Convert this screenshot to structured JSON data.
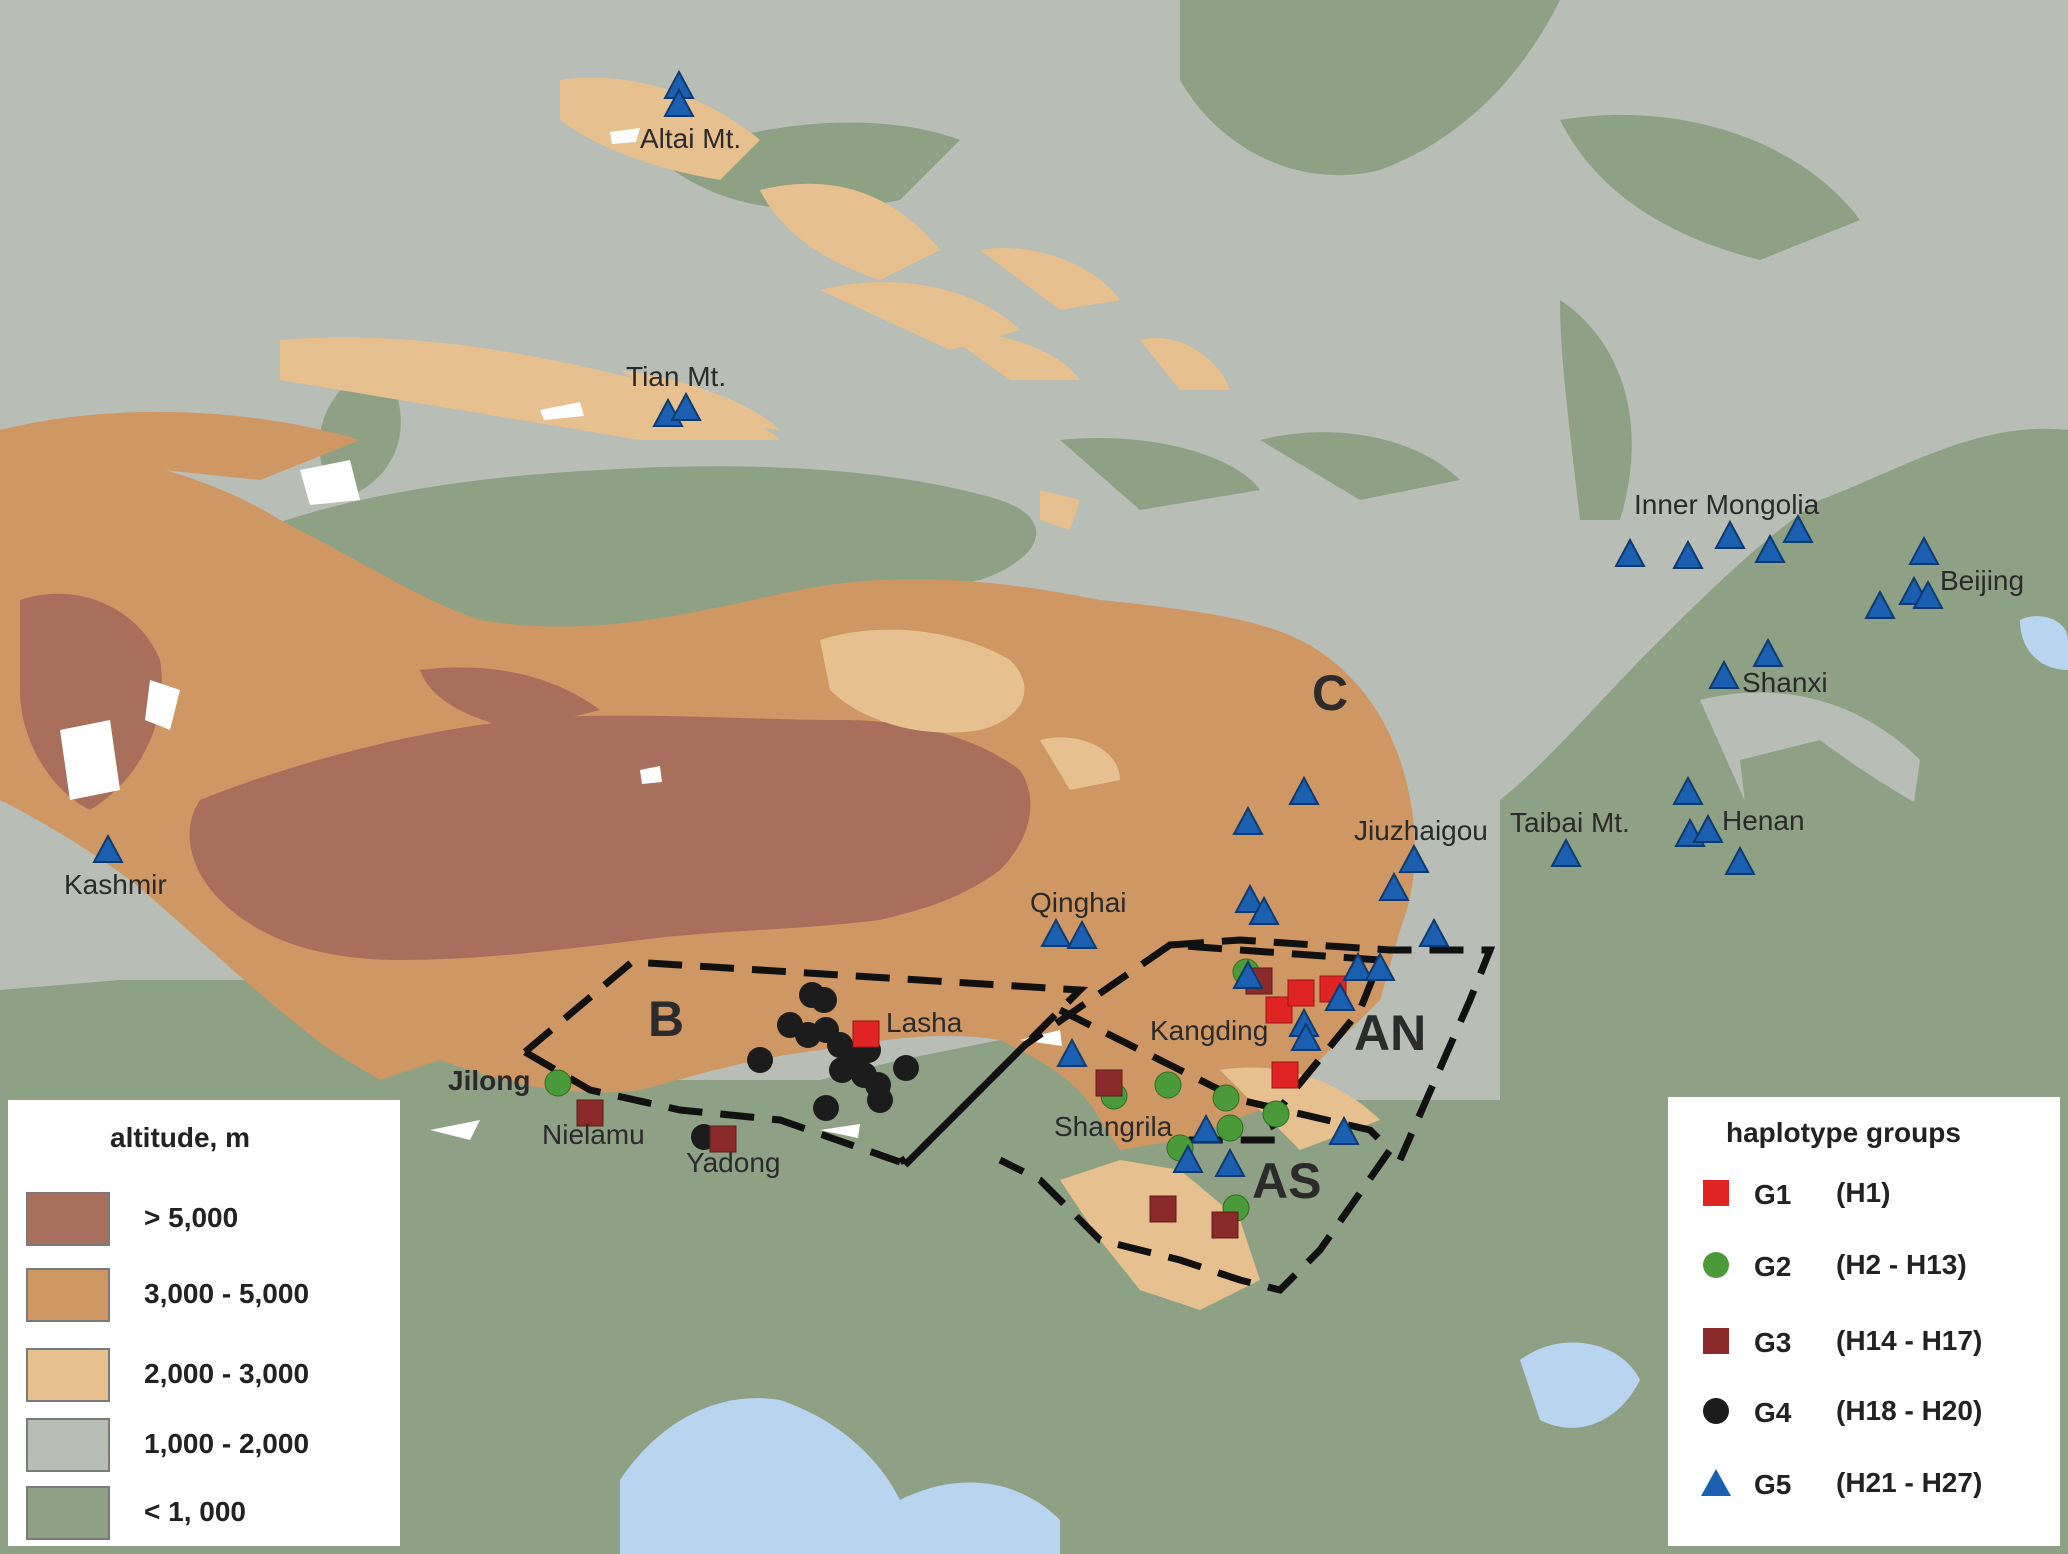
{
  "colors": {
    "lowland": "#8fa184",
    "mid": "#b8bdb6",
    "high2000": "#e6c18f",
    "high3000": "#cf9764",
    "high5000": "#a8705c",
    "water": "#b9d4ee",
    "g1": "#e02424",
    "g2": "#4a9a3a",
    "g3": "#8b2a2a",
    "g4": "#1c1c1c",
    "g5": "#1a5fb0"
  },
  "places": {
    "altai": "Altai Mt.",
    "tian": "Tian Mt.",
    "inner_mongolia": "Inner Mongolia",
    "beijing": "Beijing",
    "shanxi": "Shanxi",
    "henan": "Henan",
    "taibai": "Taibai Mt.",
    "jiuzhaigou": "Jiuzhaigou",
    "qinghai": "Qinghai",
    "kangding": "Kangding",
    "lasha": "Lasha",
    "shangrila": "Shangrila",
    "jilong": "Jilong",
    "nielamu": "Nielamu",
    "yadong": "Yadong",
    "kashmir": "Kashmir"
  },
  "regions": {
    "b": "B",
    "c": "C",
    "an": "AN",
    "as": "AS"
  },
  "altitude_legend": {
    "title": "altitude, m",
    "items": [
      {
        "label": "> 5,000",
        "color": "#a8705c"
      },
      {
        "label": "3,000 - 5,000",
        "color": "#cf9764"
      },
      {
        "label": "2,000 - 3,000",
        "color": "#e6c18f"
      },
      {
        "label": "1,000 - 2,000",
        "color": "#b8bdb6"
      },
      {
        "label": "< 1, 000",
        "color": "#8fa184"
      }
    ]
  },
  "haplotype_legend": {
    "title": "haplotype groups",
    "items": [
      {
        "name": "G1",
        "range": "(H1)",
        "shape": "square",
        "color": "#e02424"
      },
      {
        "name": "G2",
        "range": "(H2 - H13)",
        "shape": "circle",
        "color": "#4a9a3a"
      },
      {
        "name": "G3",
        "range": "(H14 - H17)",
        "shape": "square",
        "color": "#8b2a2a"
      },
      {
        "name": "G4",
        "range": "(H18 - H20)",
        "shape": "circle",
        "color": "#1c1c1c"
      },
      {
        "name": "G5",
        "range": "(H21 - H27)",
        "shape": "triangle",
        "color": "#1a5fb0"
      }
    ]
  }
}
